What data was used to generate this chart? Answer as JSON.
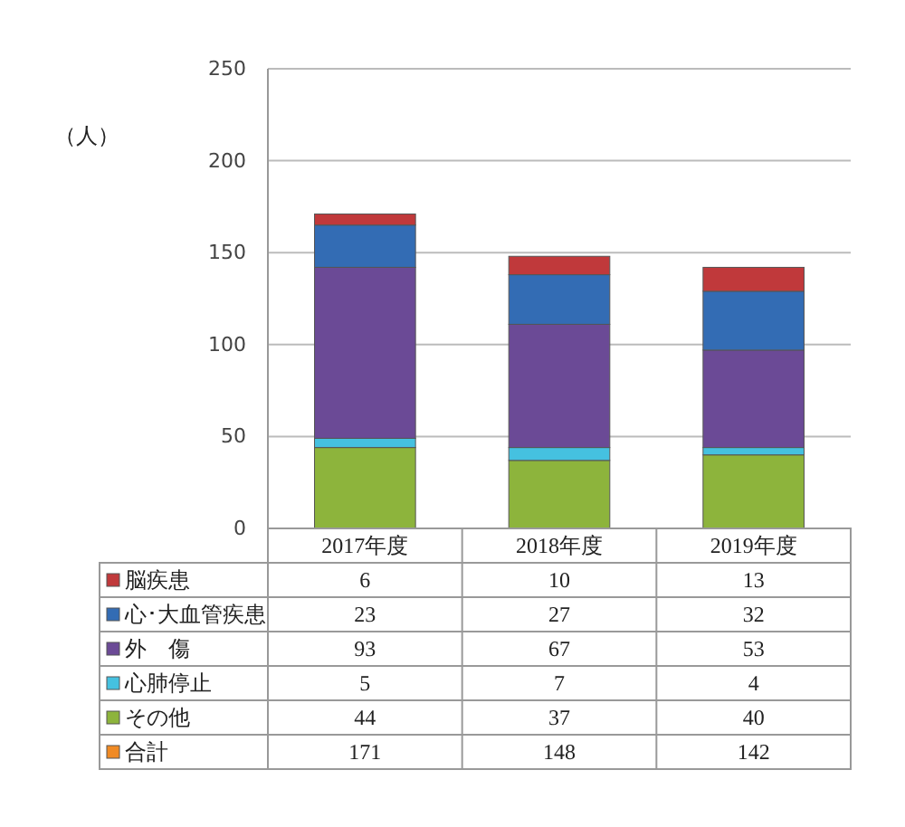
{
  "chart_data": {
    "type": "bar",
    "stacked": true,
    "ylabel": "（人）",
    "categories": [
      "2017年度",
      "2018年度",
      "2019年度"
    ],
    "series": [
      {
        "name": "その他",
        "color": "#8db43c",
        "values": [
          44,
          37,
          40
        ]
      },
      {
        "name": "心肺停止",
        "color": "#45c1e0",
        "values": [
          5,
          7,
          4
        ]
      },
      {
        "name": "外　傷",
        "color": "#6b4a96",
        "values": [
          93,
          67,
          53
        ]
      },
      {
        "name": "心･大血管疾患",
        "color": "#336cb4",
        "values": [
          23,
          27,
          32
        ]
      },
      {
        "name": "脳疾患",
        "color": "#c0393b",
        "values": [
          6,
          10,
          13
        ]
      }
    ],
    "ylim": [
      0,
      250
    ],
    "yticks": [
      0,
      50,
      100,
      150,
      200,
      250
    ],
    "grid": "y",
    "legend": "bottom",
    "data_labels": true,
    "annotations": [
      "合計",
      "171",
      "148",
      "142"
    ]
  }
}
